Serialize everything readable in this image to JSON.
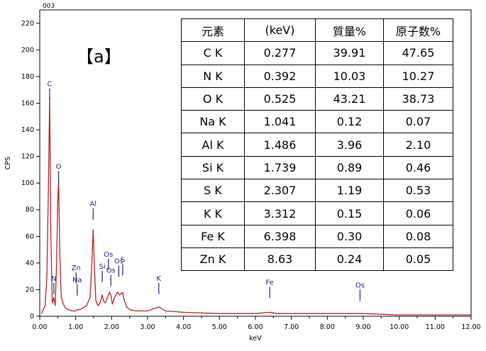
{
  "figure": {
    "corner_label": "003",
    "panel_label": "【a】"
  },
  "chart_data": {
    "type": "line",
    "xlabel": "keV",
    "ylabel": "CPS",
    "xlim": [
      0,
      12
    ],
    "ylim": [
      0,
      230
    ],
    "x_ticks": [
      "0.00",
      "1.00",
      "2.00",
      "3.00",
      "4.00",
      "5.00",
      "6.00",
      "7.00",
      "8.00",
      "9.00",
      "10.00",
      "11.00",
      "12.00"
    ],
    "y_ticks": [
      "0",
      "20",
      "40",
      "60",
      "80",
      "100",
      "120",
      "140",
      "160",
      "180",
      "200",
      "220"
    ],
    "series": [
      {
        "color": "#b22222",
        "x": [
          0.05,
          0.15,
          0.2,
          0.24,
          0.277,
          0.31,
          0.35,
          0.392,
          0.43,
          0.47,
          0.5,
          0.525,
          0.56,
          0.6,
          0.66,
          0.72,
          0.8,
          0.9,
          1.0,
          1.041,
          1.1,
          1.2,
          1.3,
          1.4,
          1.45,
          1.486,
          1.52,
          1.56,
          1.62,
          1.68,
          1.739,
          1.78,
          1.82,
          1.88,
          1.94,
          1.98,
          2.02,
          2.08,
          2.16,
          2.22,
          2.26,
          2.307,
          2.35,
          2.42,
          2.5,
          2.7,
          3.0,
          3.312,
          3.5,
          4.0,
          5.0,
          6.0,
          6.398,
          6.6,
          7.0,
          8.0,
          8.63,
          9.0,
          10.0,
          11.0,
          12.0
        ],
        "y": [
          2,
          8,
          30,
          95,
          165,
          60,
          10,
          14,
          8,
          40,
          85,
          102,
          45,
          14,
          9,
          6,
          5,
          4,
          4,
          5,
          5,
          6,
          8,
          14,
          40,
          65,
          38,
          12,
          8,
          10,
          16,
          11,
          10,
          14,
          18,
          16,
          9,
          14,
          18,
          16,
          17,
          18,
          12,
          7,
          5,
          4,
          4,
          7,
          4,
          3,
          2,
          2,
          3,
          2,
          2,
          2,
          2,
          2,
          1,
          1,
          1
        ]
      }
    ],
    "element_markers": [
      {
        "label": "C",
        "x": 0.277,
        "y": 170
      },
      {
        "label": "O",
        "x": 0.525,
        "y": 108
      },
      {
        "label": "N",
        "x": 0.392,
        "y": 24
      },
      {
        "label": "Zn",
        "x": 1.012,
        "y": 32
      },
      {
        "label": "Na",
        "x": 1.041,
        "y": 23
      },
      {
        "label": "Al",
        "x": 1.486,
        "y": 80
      },
      {
        "label": "Si",
        "x": 1.739,
        "y": 33
      },
      {
        "label": "Os",
        "x": 1.91,
        "y": 42
      },
      {
        "label": "Os",
        "x": 1.978,
        "y": 30
      },
      {
        "label": "Os",
        "x": 2.2,
        "y": 37
      },
      {
        "label": "S",
        "x": 2.307,
        "y": 38
      },
      {
        "label": "K",
        "x": 3.312,
        "y": 24
      },
      {
        "label": "Fe",
        "x": 6.398,
        "y": 21
      },
      {
        "label": "Os",
        "x": 8.91,
        "y": 19
      }
    ]
  },
  "table": {
    "headers": [
      "元素",
      "(keV)",
      "質量%",
      "原子数%"
    ],
    "rows": [
      [
        "C  K",
        "0.277",
        "39.91",
        "47.65"
      ],
      [
        "N  K",
        "0.392",
        "10.03",
        "10.27"
      ],
      [
        "O  K",
        "0.525",
        "43.21",
        "38.73"
      ],
      [
        "Na K",
        "1.041",
        "0.12",
        "0.07"
      ],
      [
        "Al K",
        "1.486",
        "3.96",
        "2.10"
      ],
      [
        "Si K",
        "1.739",
        "0.89",
        "0.46"
      ],
      [
        "S  K",
        "2.307",
        "1.19",
        "0.53"
      ],
      [
        "K  K",
        "3.312",
        "0.15",
        "0.06"
      ],
      [
        "Fe K",
        "6.398",
        "0.30",
        "0.08"
      ],
      [
        "Zn K",
        "8.63",
        "0.24",
        "0.05"
      ]
    ]
  }
}
